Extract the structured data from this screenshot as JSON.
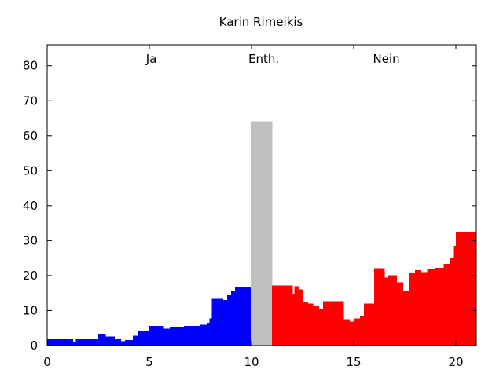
{
  "chart_data": {
    "type": "area",
    "title": "Karin Rimeikis",
    "xlabel": "",
    "ylabel": "",
    "xlim": [
      0,
      21
    ],
    "ylim": [
      0,
      86
    ],
    "x_ticks": [
      0,
      5,
      10,
      15,
      20
    ],
    "y_ticks": [
      0,
      10,
      20,
      30,
      40,
      50,
      60,
      70,
      80
    ],
    "grid": false,
    "annotations": [
      {
        "text": "Ja",
        "x": 5.1,
        "y": 82
      },
      {
        "text": "Enth.",
        "x": 10.6,
        "y": 82
      },
      {
        "text": "Nein",
        "x": 16.6,
        "y": 82
      }
    ],
    "series": [
      {
        "color": "#0000ff",
        "step_x": [
          0,
          1.25,
          1.4,
          2.5,
          2.85,
          3.3,
          3.6,
          3.8,
          4.2,
          4.45,
          5,
          5.7,
          6,
          6.7,
          7.5,
          7.8,
          7.95,
          8.05,
          8.2,
          8.6,
          8.8,
          9,
          9.2,
          10
        ],
        "step_y": [
          1.8,
          1.0,
          1.8,
          3.4,
          2.6,
          1.8,
          1.2,
          1.6,
          2.8,
          4.2,
          5.6,
          4.8,
          5.4,
          5.6,
          6.0,
          6.5,
          7.8,
          13.4,
          13.4,
          13.0,
          14.5,
          15.6,
          16.8,
          16.8
        ]
      },
      {
        "color": "#c0c0c0",
        "step_x": [
          10,
          11
        ],
        "step_y": [
          64.1,
          64.1
        ]
      },
      {
        "color": "#ff0000",
        "step_x": [
          11,
          12,
          12.1,
          12.3,
          12.5,
          12.75,
          13,
          13.3,
          13.5,
          14.2,
          14.5,
          14.8,
          15,
          15.3,
          15.5,
          16,
          16.5,
          16.7,
          17.1,
          17.4,
          17.7,
          18,
          18.3,
          18.6,
          19,
          19.4,
          19.7,
          19.9,
          20,
          21
        ],
        "step_y": [
          17.2,
          14.8,
          17.0,
          16.0,
          12.5,
          12.0,
          11.5,
          10.5,
          12.7,
          12.7,
          7.5,
          6.8,
          7.8,
          8.5,
          12.0,
          22.1,
          19.4,
          20.1,
          18.1,
          15.6,
          20.9,
          21.6,
          21.0,
          21.9,
          22.2,
          23.4,
          25.2,
          28.5,
          32.5,
          32.5
        ]
      }
    ]
  }
}
